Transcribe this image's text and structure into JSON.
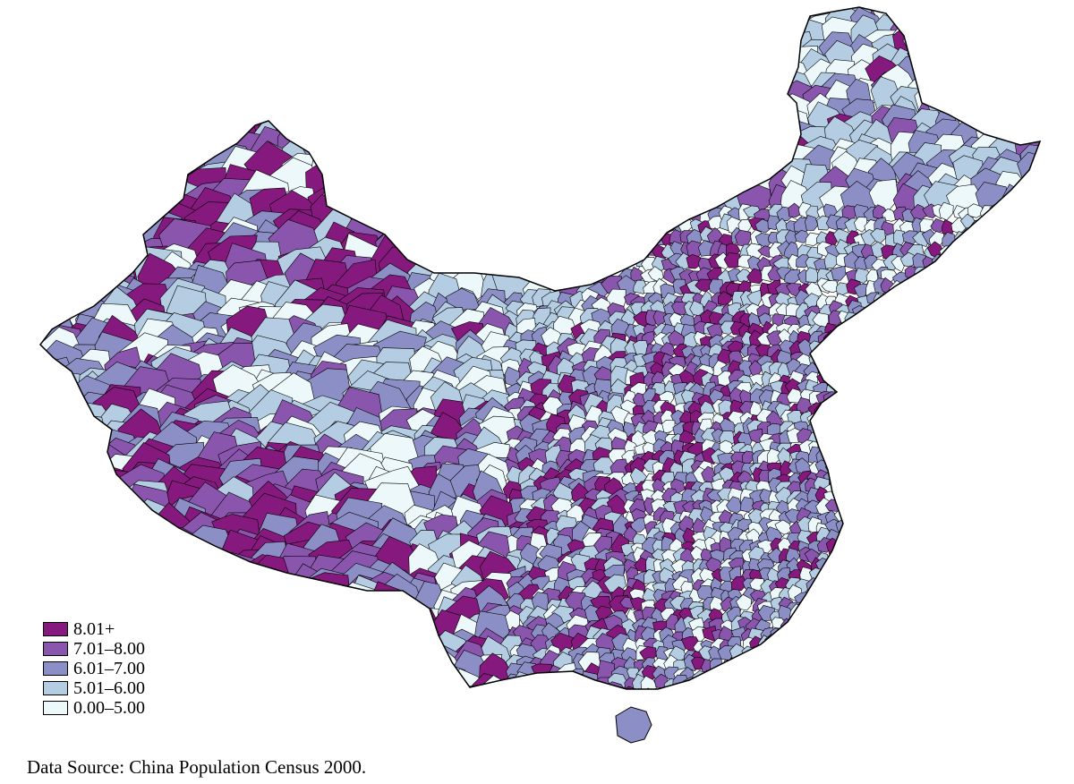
{
  "map": {
    "country": "China",
    "unit_level": "county",
    "palette": {
      "c5": "#85197d",
      "c4": "#8a56ad",
      "c3": "#8c8fc6",
      "c2": "#b4cde3",
      "c1": "#edf8fb",
      "border": "#000000"
    }
  },
  "legend": {
    "items": [
      {
        "label": "8.01+",
        "color": "#85197d"
      },
      {
        "label": "7.01–8.00",
        "color": "#8a56ad"
      },
      {
        "label": "6.01–7.00",
        "color": "#8c8fc6"
      },
      {
        "label": "5.01–6.00",
        "color": "#b4cde3"
      },
      {
        "label": "0.00–5.00",
        "color": "#edf8fb"
      }
    ]
  },
  "source": "Data Source: China Population Census 2000."
}
